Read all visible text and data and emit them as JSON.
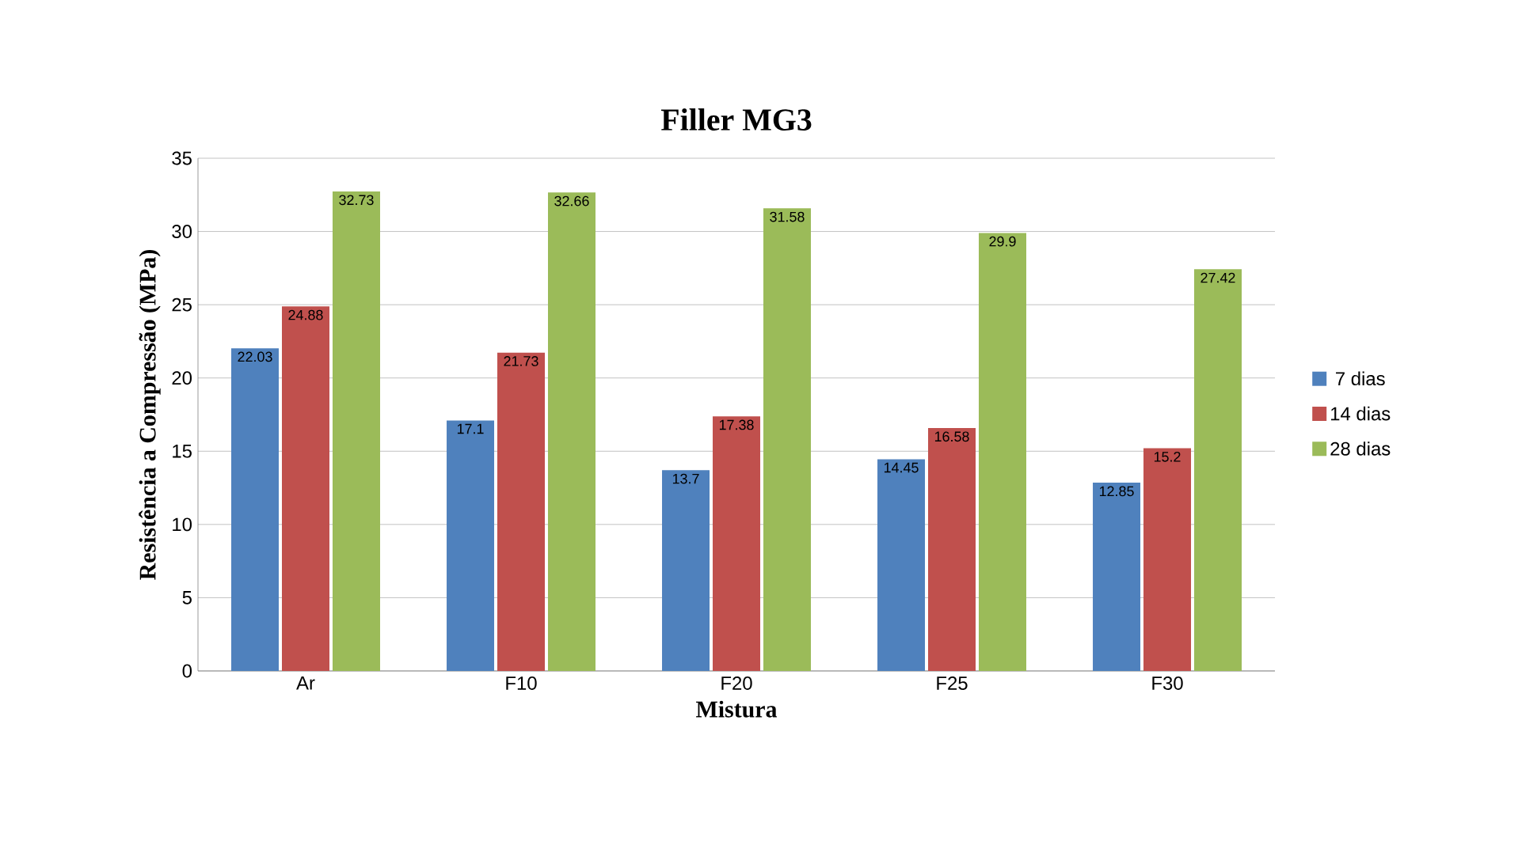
{
  "chart_data": {
    "type": "bar",
    "title": "Filler MG3",
    "xlabel": "Mistura",
    "ylabel": "Resistência a Compressão (MPa)",
    "categories": [
      "Ar",
      "F10",
      "F20",
      "F25",
      "F30"
    ],
    "series": [
      {
        "name": "7 dias",
        "color": "#4f81bd",
        "values": [
          22.03,
          17.1,
          13.7,
          14.45,
          12.85
        ]
      },
      {
        "name": "14 dias",
        "color": "#c0504d",
        "values": [
          24.88,
          21.73,
          17.38,
          16.58,
          15.2
        ]
      },
      {
        "name": "28 dias",
        "color": "#9bbb59",
        "values": [
          32.73,
          32.66,
          31.58,
          29.9,
          27.42
        ]
      }
    ],
    "ylim": [
      0,
      35
    ],
    "yticks": [
      0,
      5,
      10,
      15,
      20,
      25,
      30,
      35
    ],
    "grid": "y",
    "legend": "right",
    "data_labels": true
  }
}
